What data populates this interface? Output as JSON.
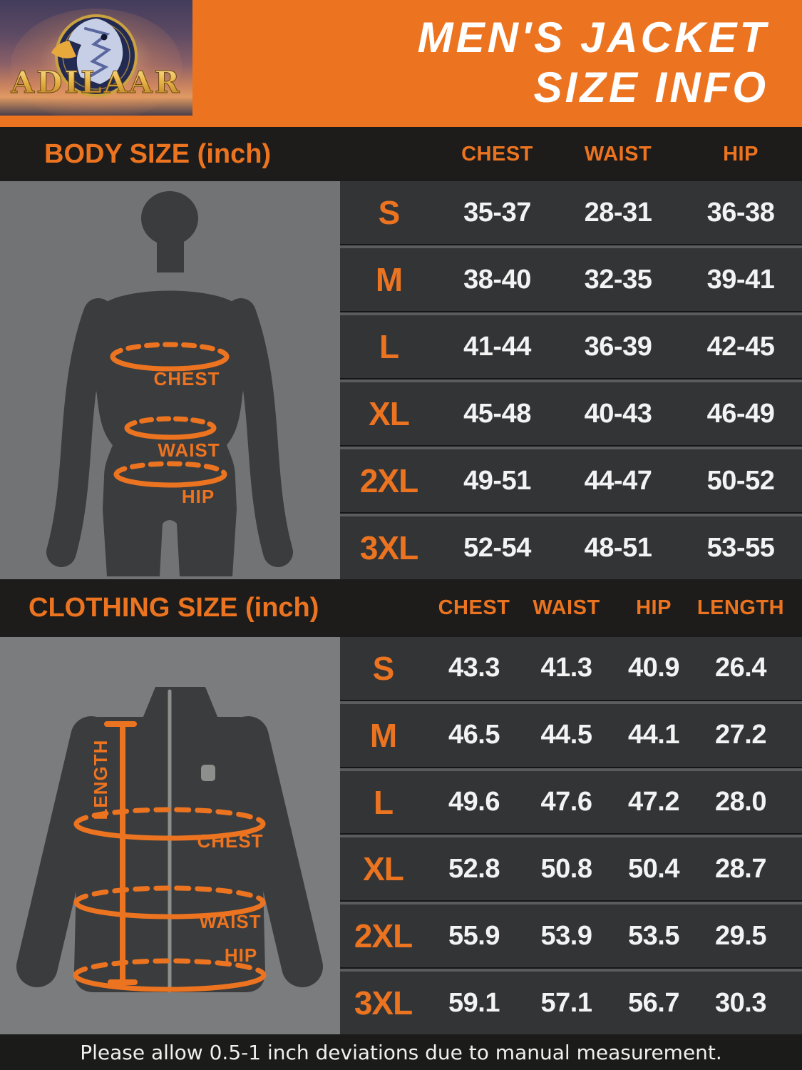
{
  "header": {
    "brand": "ADILAAR",
    "title_line1": "MEN'S JACKET",
    "title_line2": "SIZE INFO"
  },
  "colors": {
    "accent_orange": "#EC7420",
    "header_background": "#EC7420",
    "section_bar_background": "#1D1C1A",
    "table_background": "#333436",
    "body_panel_background": "#717375",
    "clothing_panel_background": "#7A7C7E",
    "silhouette": "#3B3C3E",
    "value_text": "#F3F3F3"
  },
  "body_size_section": {
    "title": "BODY SIZE (inch)",
    "columns": [
      "CHEST",
      "WAIST",
      "HIP"
    ],
    "diagram": {
      "icon": "male-body-silhouette",
      "labels": {
        "chest": "CHEST",
        "waist": "WAIST",
        "hip": "HIP"
      }
    },
    "rows": [
      {
        "size": "S",
        "chest": "35-37",
        "waist": "28-31",
        "hip": "36-38"
      },
      {
        "size": "M",
        "chest": "38-40",
        "waist": "32-35",
        "hip": "39-41"
      },
      {
        "size": "L",
        "chest": "41-44",
        "waist": "36-39",
        "hip": "42-45"
      },
      {
        "size": "XL",
        "chest": "45-48",
        "waist": "40-43",
        "hip": "46-49"
      },
      {
        "size": "2XL",
        "chest": "49-51",
        "waist": "44-47",
        "hip": "50-52"
      },
      {
        "size": "3XL",
        "chest": "52-54",
        "waist": "48-51",
        "hip": "53-55"
      }
    ]
  },
  "clothing_size_section": {
    "title": "CLOTHING SIZE (inch)",
    "columns": [
      "CHEST",
      "WAIST",
      "HIP",
      "LENGTH"
    ],
    "diagram": {
      "icon": "jacket-silhouette",
      "labels": {
        "length": "LENGTH",
        "chest": "CHEST",
        "waist": "WAIST",
        "hip": "HIP"
      }
    },
    "rows": [
      {
        "size": "S",
        "chest": "43.3",
        "waist": "41.3",
        "hip": "40.9",
        "length": "26.4"
      },
      {
        "size": "M",
        "chest": "46.5",
        "waist": "44.5",
        "hip": "44.1",
        "length": "27.2"
      },
      {
        "size": "L",
        "chest": "49.6",
        "waist": "47.6",
        "hip": "47.2",
        "length": "28.0"
      },
      {
        "size": "XL",
        "chest": "52.8",
        "waist": "50.8",
        "hip": "50.4",
        "length": "28.7"
      },
      {
        "size": "2XL",
        "chest": "55.9",
        "waist": "53.9",
        "hip": "53.5",
        "length": "29.5"
      },
      {
        "size": "3XL",
        "chest": "59.1",
        "waist": "57.1",
        "hip": "56.7",
        "length": "30.3"
      }
    ]
  },
  "footer": {
    "note": "Please allow 0.5-1 inch deviations due to manual measurement."
  }
}
